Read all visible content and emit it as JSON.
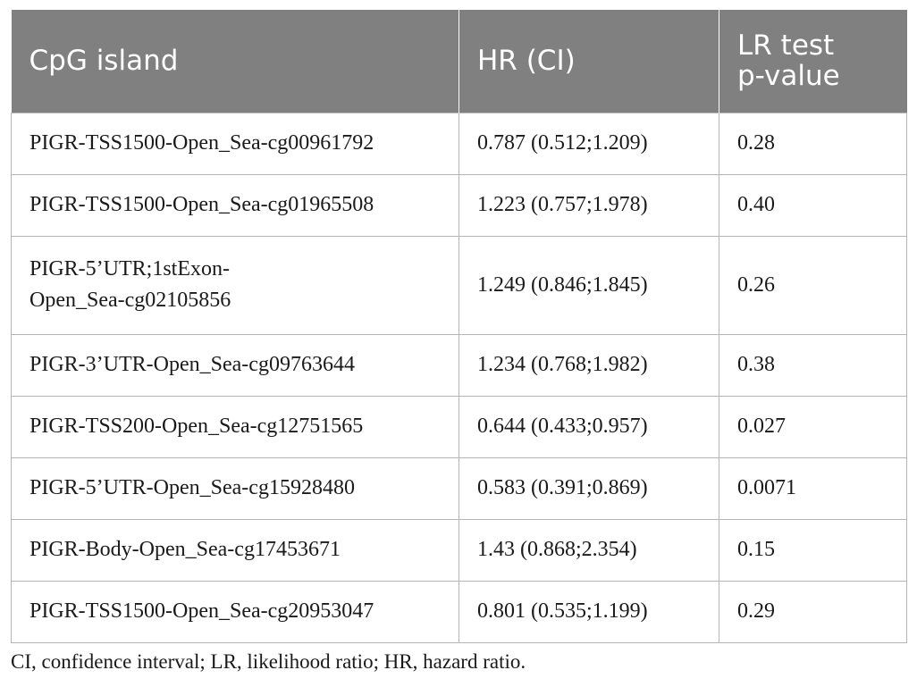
{
  "table": {
    "headers": [
      {
        "lines": [
          "CpG island"
        ]
      },
      {
        "lines": [
          "HR (CI)"
        ]
      },
      {
        "lines": [
          "LR test",
          "p-value"
        ]
      }
    ],
    "rows": [
      {
        "island": "PIGR-TSS1500-Open_Sea-cg00961792",
        "hr": "0.787 (0.512;1.209)",
        "p": "0.28"
      },
      {
        "island": "PIGR-TSS1500-Open_Sea-cg01965508",
        "hr": "1.223 (0.757;1.978)",
        "p": "0.40"
      },
      {
        "island_lines": [
          "PIGR-5’UTR;1stExon-",
          "Open_Sea-cg02105856"
        ],
        "hr": "1.249 (0.846;1.845)",
        "p": "0.26"
      },
      {
        "island": "PIGR-3’UTR-Open_Sea-cg09763644",
        "hr": "1.234 (0.768;1.982)",
        "p": "0.38"
      },
      {
        "island": "PIGR-TSS200-Open_Sea-cg12751565",
        "hr": "0.644 (0.433;0.957)",
        "p": "0.027"
      },
      {
        "island": "PIGR-5’UTR-Open_Sea-cg15928480",
        "hr": "0.583 (0.391;0.869)",
        "p": "0.0071"
      },
      {
        "island": "PIGR-Body-Open_Sea-cg17453671",
        "hr": "1.43 (0.868;2.354)",
        "p": "0.15"
      },
      {
        "island": "PIGR-TSS1500-Open_Sea-cg20953047",
        "hr": "0.801 (0.535;1.199)",
        "p": "0.29"
      }
    ]
  },
  "footnote": "CI, confidence interval; LR, likelihood ratio; HR, hazard ratio.",
  "colors": {
    "header_bg": "#808080",
    "header_text": "#ffffff",
    "border": "#b5b5b5"
  }
}
